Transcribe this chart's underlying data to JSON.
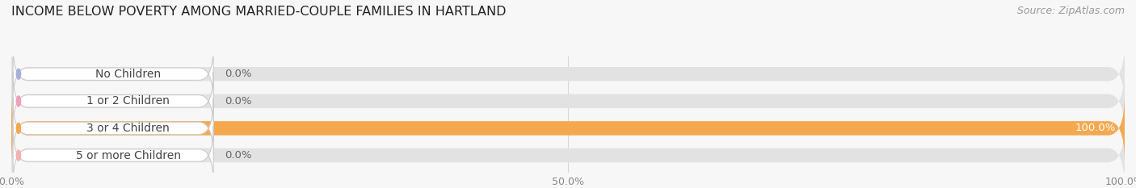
{
  "title": "INCOME BELOW POVERTY AMONG MARRIED-COUPLE FAMILIES IN HARTLAND",
  "source": "Source: ZipAtlas.com",
  "categories": [
    "No Children",
    "1 or 2 Children",
    "3 or 4 Children",
    "5 or more Children"
  ],
  "values": [
    0.0,
    0.0,
    100.0,
    0.0
  ],
  "bar_colors": [
    "#aab0dc",
    "#f0a0ba",
    "#f5a94e",
    "#f5b0b0"
  ],
  "bg_bar_color": "#e2e2e2",
  "pill_color": "#ffffff",
  "pill_edge_color": "#cccccc",
  "text_color": "#444444",
  "value_color_inside": "#ffffff",
  "value_color_outside": "#666666",
  "tick_color": "#888888",
  "background_color": "#f7f7f7",
  "grid_color": "#d8d8d8",
  "xlim": [
    0,
    100
  ],
  "xtick_vals": [
    0,
    50,
    100
  ],
  "xtick_labels": [
    "0.0%",
    "50.0%",
    "100.0%"
  ],
  "value_label_inside_threshold": 50,
  "title_fontsize": 11.5,
  "source_fontsize": 9,
  "label_fontsize": 10,
  "value_fontsize": 9.5,
  "tick_fontsize": 9
}
